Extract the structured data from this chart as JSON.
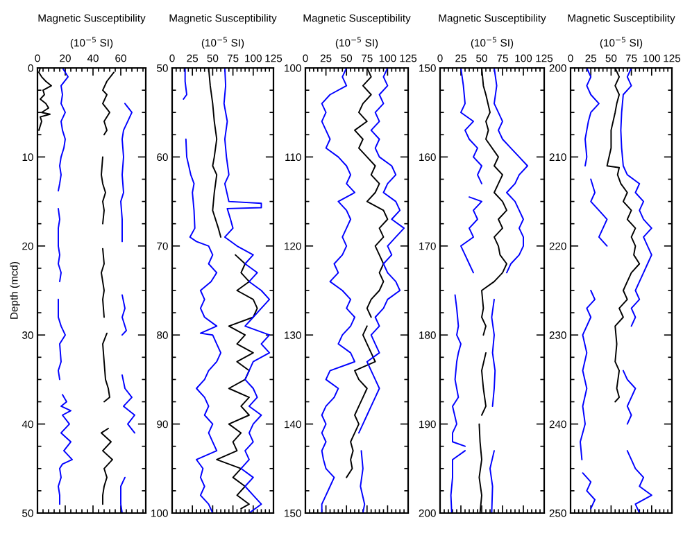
{
  "chart_data": [
    {
      "type": "line",
      "title": "Magnetic Susceptibility",
      "xlabel": "(10$^{−5}$ SI)",
      "ylabel": "Depth (mcd)",
      "xlim": [
        0,
        78
      ],
      "xticks": [
        0,
        20,
        40,
        60
      ],
      "ylim": [
        50,
        0
      ],
      "yticks": [
        0,
        10,
        20,
        30,
        40,
        50
      ],
      "series": [
        {
          "color": "#000000",
          "x": [
            2,
            1,
            3,
            6,
            10,
            4,
            5,
            2,
            6,
            8,
            3,
            9,
            2,
            3,
            1
          ],
          "values": [
            0,
            0.5,
            1,
            1.5,
            2,
            2.5,
            3,
            3.5,
            4,
            4.5,
            5,
            5.2,
            5.5,
            6,
            7
          ]
        },
        {
          "color": "#0000ff",
          "x": [
            18,
            22,
            17,
            18,
            17,
            20,
            17,
            18,
            20,
            19,
            17,
            16,
            17,
            16,
            15,
            null,
            15,
            16,
            15,
            15,
            16,
            15,
            17,
            16,
            null,
            15,
            15,
            17,
            20,
            16,
            17,
            15,
            16,
            null,
            18,
            21,
            17,
            24,
            18,
            23,
            17,
            24,
            19,
            25,
            18,
            16,
            17,
            15,
            16,
            16
          ],
          "values": [
            0,
            1,
            2,
            3,
            4,
            5,
            6,
            7,
            8,
            9,
            10,
            11,
            12,
            13,
            13.8,
            null,
            15.8,
            17,
            18,
            20,
            21,
            22,
            23,
            24,
            null,
            26,
            28,
            29,
            30,
            31,
            33,
            34,
            35,
            null,
            36.7,
            37.5,
            38,
            38.5,
            39,
            40,
            41,
            42,
            43,
            44,
            44.5,
            45,
            46,
            47,
            48,
            49
          ]
        },
        {
          "color": "#000000",
          "x": [
            55,
            50,
            47,
            50,
            47,
            52,
            48,
            50,
            48,
            null,
            47,
            46,
            47,
            49,
            47,
            48,
            47,
            null,
            47,
            48,
            46,
            48,
            47,
            48,
            null,
            50,
            47,
            48,
            49,
            51,
            52,
            48,
            null,
            51,
            46,
            53,
            47,
            54,
            48,
            50,
            48,
            47,
            47
          ],
          "values": [
            0.5,
            1.5,
            2.5,
            3,
            4,
            5,
            6,
            7,
            7.5,
            null,
            10,
            12,
            13,
            14,
            15,
            16,
            17.5,
            null,
            20.3,
            22,
            23,
            25,
            26,
            28,
            null,
            29.8,
            31,
            33,
            35,
            36,
            37,
            37.5,
            null,
            40.5,
            41,
            42,
            43,
            44,
            45,
            46,
            47,
            48,
            49
          ]
        },
        {
          "color": "#0000ff",
          "x": [
            63,
            68,
            65,
            62,
            61,
            62,
            61,
            62,
            60,
            61,
            61,
            null,
            61,
            63,
            61,
            64,
            61,
            null,
            61,
            63,
            68,
            62,
            70,
            65,
            70,
            null,
            63,
            60,
            60,
            61
          ],
          "values": [
            4,
            5,
            6,
            7,
            8,
            10,
            12,
            14,
            15,
            17,
            19.5,
            null,
            25.5,
            27,
            28,
            29.5,
            30,
            null,
            34.5,
            36,
            37,
            38,
            39,
            40,
            41,
            null,
            46,
            47,
            49,
            50
          ]
        }
      ]
    },
    {
      "type": "line",
      "title": "Magnetic Susceptibility",
      "xlabel": "(10$^{−5}$ SI)",
      "xlim": [
        0,
        125
      ],
      "xticks": [
        0,
        25,
        50,
        75,
        100,
        125
      ],
      "ylim": [
        100,
        50
      ],
      "yticks": [
        50,
        60,
        70,
        80,
        90,
        100
      ],
      "series": [
        {
          "color": "#0000ff",
          "x": [
            16,
            16,
            18,
            14,
            null,
            17,
            18,
            23,
            27,
            25,
            27,
            28,
            22,
            30,
            45,
            50,
            45,
            55,
            48,
            35,
            40,
            35,
            40,
            55,
            35,
            50,
            55,
            60,
            55,
            45,
            40,
            30,
            40,
            45,
            40,
            50,
            45,
            50,
            55,
            30,
            38,
            35,
            40,
            35,
            45,
            50
          ],
          "values": [
            50,
            51.5,
            53,
            53.5,
            null,
            58,
            60,
            62,
            63,
            64,
            66,
            68,
            69,
            69.5,
            70,
            71,
            72,
            73,
            74,
            75,
            76,
            77,
            78,
            79,
            79.8,
            80,
            81,
            82,
            83,
            84,
            85,
            86,
            87,
            88,
            89,
            90,
            91,
            92,
            93,
            94,
            95,
            96,
            97,
            98,
            99,
            100
          ]
        },
        {
          "color": "#000000",
          "x": [
            45,
            47,
            50,
            52,
            55,
            52,
            50,
            55,
            52,
            50,
            57,
            60,
            null,
            78,
            90,
            85,
            95,
            80,
            100,
            105,
            100,
            70,
            90,
            80,
            100,
            80,
            95,
            90,
            70,
            95,
            85,
            95,
            70,
            85,
            75,
            80,
            55,
            85,
            75,
            90,
            80,
            95,
            85
          ],
          "values": [
            50,
            52,
            54,
            56,
            58,
            60,
            61,
            62,
            64,
            66,
            68,
            69,
            null,
            71,
            72,
            73,
            74,
            75,
            76,
            77,
            78,
            79,
            80,
            81,
            82,
            83,
            84,
            85,
            86,
            87,
            88,
            89,
            90,
            91,
            92,
            93,
            94,
            95,
            96,
            97,
            98,
            99,
            99.5
          ]
        },
        {
          "color": "#0000ff",
          "x": [
            65,
            66,
            64,
            68,
            65,
            67,
            70,
            65,
            70,
            110,
            110,
            68,
            72,
            75,
            65,
            80,
            100,
            90,
            105,
            95,
            110,
            120,
            110,
            100,
            90,
            120,
            110,
            120,
            100,
            95,
            90,
            100,
            105,
            95,
            110,
            100,
            95,
            100,
            90,
            95,
            85,
            100,
            90,
            100,
            110,
            95
          ],
          "values": [
            50,
            52,
            54,
            56,
            58,
            60,
            62,
            63,
            65,
            65.2,
            65.7,
            65.8,
            67,
            68,
            69,
            70,
            71,
            72,
            73,
            74,
            75,
            76,
            77,
            78,
            79,
            80,
            81,
            82,
            83,
            84,
            85,
            86,
            87,
            88,
            89,
            90,
            91,
            92,
            93,
            94,
            95,
            96,
            97,
            98,
            99,
            100
          ]
        }
      ]
    },
    {
      "type": "line",
      "title": "Magnetic Susceptibility",
      "xlabel": "(10$^{−5}$ SI)",
      "xlim": [
        0,
        125
      ],
      "xticks": [
        0,
        25,
        50,
        75,
        100,
        125
      ],
      "ylim": [
        150,
        100
      ],
      "yticks": [
        100,
        110,
        120,
        130,
        140,
        150
      ],
      "series": [
        {
          "color": "#0000ff",
          "x": [
            50,
            45,
            50,
            30,
            20,
            25,
            20,
            25,
            30,
            25,
            40,
            50,
            55,
            50,
            60,
            40,
            50,
            55,
            50,
            45,
            50,
            45,
            35,
            40,
            30,
            45,
            55,
            50,
            60,
            55,
            45,
            40,
            55,
            60,
            30,
            25,
            40,
            35,
            25,
            20,
            25,
            20,
            25,
            20,
            22,
            25,
            35,
            30,
            25,
            20,
            20
          ],
          "values": [
            100,
            101,
            102,
            103,
            104,
            105,
            106,
            107,
            108,
            109,
            110,
            111,
            112,
            113,
            114,
            115,
            116,
            117,
            118,
            119,
            120,
            121,
            122,
            123,
            124,
            125,
            126,
            127,
            128,
            129,
            130,
            131,
            132,
            133,
            134,
            135,
            136,
            137,
            138,
            139,
            140,
            141,
            142,
            143,
            144,
            145,
            146,
            147,
            148,
            149,
            150
          ]
        },
        {
          "color": "#000000",
          "x": [
            75,
            80,
            70,
            80,
            70,
            65,
            75,
            60,
            70,
            65,
            75,
            85,
            80,
            90,
            85,
            75,
            95,
            100,
            90,
            95,
            85,
            90,
            95,
            90,
            95,
            90,
            80,
            75,
            80,
            null,
            75,
            70,
            75,
            80,
            85,
            60,
            65,
            75,
            70,
            65,
            60,
            65,
            60,
            55,
            58,
            55,
            57,
            50
          ],
          "values": [
            100,
            101,
            102,
            103,
            104,
            105,
            106,
            107,
            108,
            109,
            110,
            111,
            112,
            113,
            114,
            115,
            116,
            117,
            118,
            119,
            120,
            121,
            122,
            123,
            124,
            125,
            126,
            127,
            128,
            null,
            129,
            130,
            131,
            132,
            133,
            134,
            135,
            136,
            137,
            138,
            139,
            140,
            141,
            142,
            143,
            144,
            145,
            146
          ]
        },
        {
          "color": "#0000ff",
          "x": [
            100,
            95,
            100,
            90,
            95,
            85,
            90,
            80,
            90,
            85,
            90,
            105,
            110,
            100,
            95,
            110,
            115,
            105,
            120,
            110,
            100,
            105,
            95,
            100,
            110,
            115,
            100,
            95,
            85,
            90,
            80,
            85,
            90,
            75,
            80,
            85,
            90,
            85,
            80,
            75,
            70,
            65,
            null,
            68,
            70,
            67,
            72,
            70
          ],
          "values": [
            100,
            101,
            102,
            103,
            104,
            105,
            106,
            107,
            108,
            109,
            110,
            111,
            112,
            113,
            114,
            115,
            116,
            117,
            118,
            119,
            120,
            121,
            122,
            123,
            124,
            125,
            126,
            127,
            128,
            129,
            130,
            131,
            132,
            133,
            134,
            135,
            136,
            137,
            138,
            139,
            140,
            141,
            null,
            143,
            145,
            147,
            149,
            150
          ]
        }
      ]
    },
    {
      "type": "line",
      "title": "Magnetic Susceptibility",
      "xlabel": "(10$^{−5}$ SI)",
      "xlim": [
        0,
        125
      ],
      "xticks": [
        0,
        25,
        50,
        75,
        100,
        125
      ],
      "ylim": [
        200,
        150
      ],
      "yticks": [
        150,
        160,
        170,
        180,
        190,
        200
      ],
      "series": [
        {
          "color": "#0000ff",
          "x": [
            25,
            28,
            30,
            25,
            40,
            30,
            35,
            45,
            40,
            50,
            45,
            50,
            null,
            35,
            50,
            40,
            45,
            35,
            40,
            25,
            30,
            35,
            40,
            null,
            18,
            20,
            22,
            20,
            25,
            22,
            20,
            18,
            22,
            15,
            20,
            15,
            15,
            30,
            null,
            30,
            15,
            15,
            13,
            14
          ],
          "values": [
            150,
            152,
            154,
            155,
            156,
            157,
            158,
            159,
            160,
            161,
            162,
            163,
            null,
            164.5,
            165,
            166,
            167,
            168,
            169,
            170,
            171,
            172,
            173,
            null,
            175.5,
            177,
            179,
            180,
            181,
            182,
            183,
            185,
            187,
            188,
            190,
            191,
            192,
            192.5,
            null,
            193,
            194,
            196,
            198,
            200
          ]
        },
        {
          "color": "#000000",
          "x": [
            50,
            52,
            55,
            60,
            55,
            58,
            55,
            70,
            65,
            75,
            70,
            65,
            75,
            80,
            70,
            75,
            65,
            70,
            72,
            80,
            75,
            65,
            50,
            52,
            50,
            55,
            52,
            null,
            55,
            50,
            52,
            55,
            50,
            null,
            47,
            48,
            50,
            47,
            50,
            48
          ],
          "values": [
            150,
            152,
            153,
            155,
            156,
            157,
            158,
            160,
            161,
            162,
            163,
            164,
            165,
            166,
            167,
            168,
            169,
            170,
            171,
            172,
            173,
            174,
            175,
            177,
            178,
            179,
            180,
            null,
            182,
            184,
            186,
            188,
            189,
            null,
            190,
            192,
            194,
            196,
            198,
            200
          ]
        },
        {
          "color": "#0000ff",
          "x": [
            65,
            68,
            65,
            70,
            75,
            70,
            75,
            85,
            95,
            105,
            95,
            90,
            80,
            90,
            95,
            100,
            95,
            100,
            100,
            95,
            85,
            80,
            null,
            65,
            62,
            65,
            63,
            66,
            65,
            63,
            null,
            65,
            60,
            63,
            62
          ],
          "values": [
            150,
            152,
            154,
            155,
            156,
            157,
            158,
            159,
            160,
            161,
            162,
            163,
            164,
            165,
            166,
            167,
            168,
            169,
            170,
            171,
            172,
            173,
            null,
            176,
            178,
            180,
            182,
            184,
            186,
            188,
            null,
            193,
            195,
            197,
            200
          ]
        }
      ]
    },
    {
      "type": "line",
      "title": "Magnetic Susceptibility",
      "xlabel": "(10$^{−5}$ SI)",
      "xlim": [
        0,
        125
      ],
      "xticks": [
        0,
        25,
        50,
        75,
        100,
        125
      ],
      "ylim": [
        250,
        200
      ],
      "yticks": [
        200,
        210,
        220,
        230,
        240,
        250
      ],
      "series": [
        {
          "color": "#0000ff",
          "x": [
            20,
            25,
            20,
            25,
            35,
            25,
            22,
            20,
            18,
            20,
            18,
            null,
            25,
            30,
            25,
            35,
            45,
            40,
            35,
            45,
            null,
            25,
            30,
            20,
            25,
            15,
            20,
            15,
            20,
            15,
            18,
            12,
            14,
            null,
            15,
            25,
            20,
            30,
            25
          ],
          "values": [
            200,
            201,
            202,
            203,
            204,
            205,
            206,
            207,
            208,
            210,
            211,
            null,
            212.5,
            214,
            215,
            216,
            217,
            218,
            219,
            220,
            null,
            225,
            226,
            227,
            228,
            230,
            232,
            234,
            236,
            238,
            240,
            242,
            244,
            null,
            245.5,
            246.5,
            247.5,
            248.5,
            249.5
          ]
        },
        {
          "color": "#000000",
          "x": [
            55,
            60,
            55,
            60,
            57,
            55,
            50,
            50,
            45,
            60,
            58,
            62,
            70,
            65,
            75,
            70,
            80,
            75,
            80,
            78,
            85,
            75,
            70,
            65,
            70,
            60,
            65,
            55,
            57,
            55,
            60,
            57,
            60,
            55
          ],
          "values": [
            200,
            201,
            202,
            203,
            204,
            205,
            207,
            209,
            211,
            211.2,
            212,
            213,
            214,
            215,
            216,
            217,
            218,
            219,
            220,
            221,
            222,
            223,
            224,
            225,
            226,
            227,
            228,
            229,
            231,
            233,
            234,
            236,
            237,
            237.5
          ]
        },
        {
          "color": "#0000ff",
          "x": [
            75,
            70,
            75,
            65,
            63,
            62,
            63,
            65,
            70,
            85,
            80,
            90,
            85,
            90,
            100,
            90,
            95,
            100,
            95,
            90,
            85,
            80,
            85,
            75,
            80,
            75,
            null,
            65,
            70,
            80,
            75,
            70,
            75,
            70,
            null,
            70,
            75,
            80,
            90,
            85,
            100,
            80,
            85
          ],
          "values": [
            200,
            201,
            202,
            203,
            205,
            207,
            209,
            211,
            212,
            213,
            214,
            215,
            216,
            217,
            218,
            219,
            220,
            221,
            222,
            223,
            224,
            225,
            226,
            227,
            228,
            229,
            null,
            234,
            235,
            236,
            237,
            238,
            239,
            240,
            null,
            243,
            244,
            245,
            246,
            247,
            248,
            249,
            250
          ]
        }
      ]
    }
  ]
}
